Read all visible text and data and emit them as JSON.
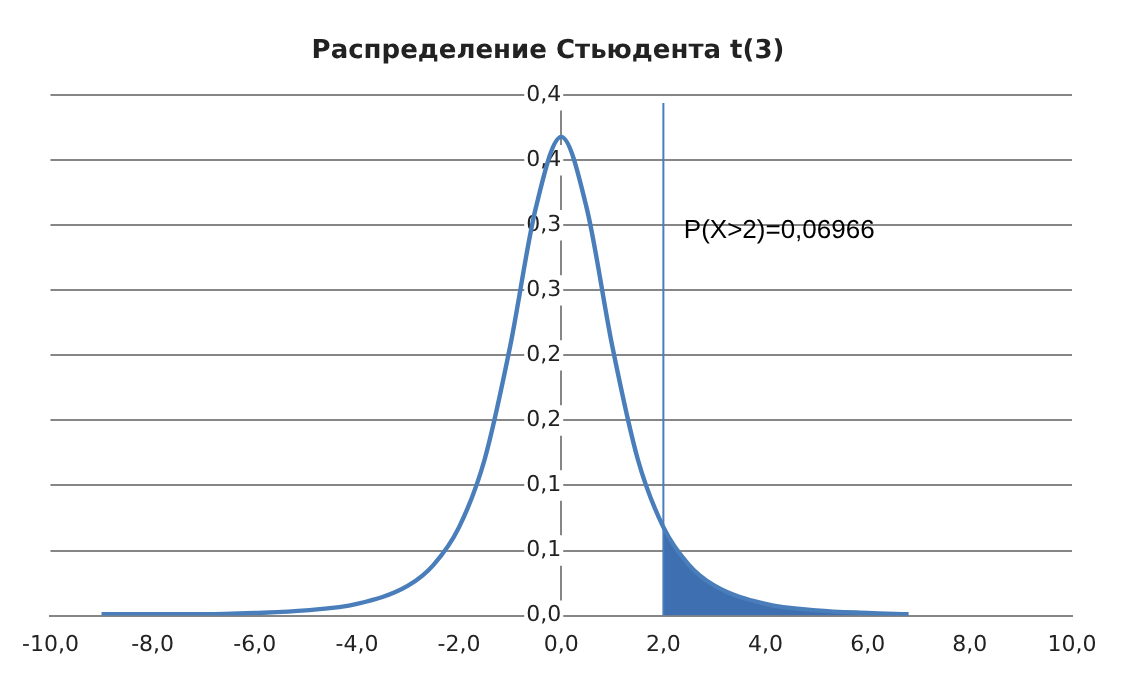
{
  "chart_data": {
    "type": "line",
    "title": "Распределение Стьюдента t(3)",
    "annotations": [
      "P(X>2)=0,06966"
    ],
    "series": [
      {
        "type": "line",
        "color": "#4a7ebb",
        "x": [
          -9,
          -8,
          -7,
          -6,
          -5,
          -4,
          -3,
          -2.5,
          -2,
          -1.5,
          -1,
          -0.5,
          0,
          0.5,
          1,
          1.5,
          2,
          2.5,
          3,
          4,
          5,
          6,
          6.8
        ],
        "values": [
          0.001,
          0.001,
          0.001,
          0.002,
          0.004,
          0.009,
          0.023,
          0.039,
          0.068,
          0.12,
          0.207,
          0.313,
          0.368,
          0.313,
          0.207,
          0.12,
          0.068,
          0.039,
          0.023,
          0.009,
          0.004,
          0.002,
          0.001
        ]
      },
      {
        "type": "area",
        "color": "#3e6fb0",
        "x": [
          2,
          2.5,
          3,
          4,
          5,
          6,
          6.8
        ],
        "values": [
          0.068,
          0.039,
          0.023,
          0.009,
          0.004,
          0.002,
          0.001
        ]
      }
    ],
    "ref_lines": [
      {
        "axis": "x",
        "value": 2,
        "color": "#4a7ebb"
      }
    ],
    "xlim": [
      -10,
      10
    ],
    "xticks": [
      {
        "value": -10,
        "label": "-10,0"
      },
      {
        "value": -8,
        "label": "-8,0"
      },
      {
        "value": -6,
        "label": "-6,0"
      },
      {
        "value": -4,
        "label": "-4,0"
      },
      {
        "value": -2,
        "label": "-2,0"
      },
      {
        "value": 0,
        "label": "0,0"
      },
      {
        "value": 2,
        "label": "2,0"
      },
      {
        "value": 4,
        "label": "4,0"
      },
      {
        "value": 6,
        "label": "6,0"
      },
      {
        "value": 8,
        "label": "8,0"
      },
      {
        "value": 10,
        "label": "10,0"
      }
    ],
    "ylim": [
      0,
      0.4
    ],
    "yticks": [
      {
        "value": 0,
        "label": "0,0"
      },
      {
        "value": 0.05,
        "label": "0,1"
      },
      {
        "value": 0.1,
        "label": "0,1"
      },
      {
        "value": 0.15,
        "label": "0,2"
      },
      {
        "value": 0.2,
        "label": "0,2"
      },
      {
        "value": 0.25,
        "label": "0,3"
      },
      {
        "value": 0.3,
        "label": "0,3"
      },
      {
        "value": 0.35,
        "label": "0,4"
      },
      {
        "value": 0.4,
        "label": "0,4"
      }
    ],
    "grid": "y",
    "legend": false,
    "marker": "none",
    "line_style": "solid"
  }
}
